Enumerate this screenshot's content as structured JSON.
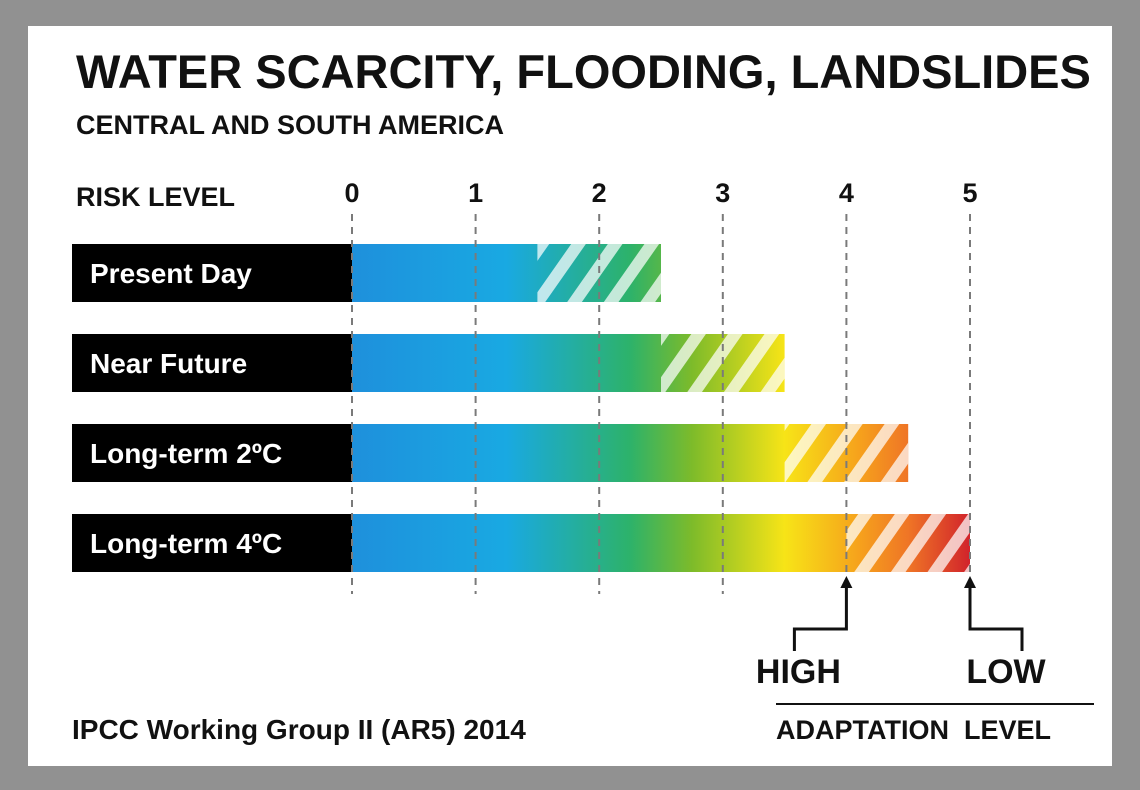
{
  "chart_data": {
    "type": "bar",
    "title": "WATER SCARCITY, FLOODING, LANDSLIDES",
    "subtitle": "CENTRAL AND SOUTH AMERICA",
    "xlabel": "RISK LEVEL",
    "xlim": [
      0,
      5
    ],
    "ticks": [
      "0",
      "1",
      "2",
      "3",
      "4",
      "5"
    ],
    "grid": true,
    "series": [
      {
        "category": "Present Day",
        "high_adaptation": 1.5,
        "low_adaptation": 2.5
      },
      {
        "category": "Near Future",
        "high_adaptation": 2.5,
        "low_adaptation": 3.5
      },
      {
        "category": "Long-term 2ºC",
        "high_adaptation": 3.5,
        "low_adaptation": 4.5
      },
      {
        "category": "Long-term 4ºC",
        "high_adaptation": 4.0,
        "low_adaptation": 5.0
      }
    ],
    "colors": [
      "#1e90dc",
      "#19a9e2",
      "#2db26a",
      "#7dbb2a",
      "#f7e417",
      "#f6a21c",
      "#ef7526",
      "#d1232b"
    ],
    "annotations": {
      "high": "HIGH",
      "low": "LOW",
      "adaptation_level": "ADAPTATION  LEVEL",
      "high_value": 4,
      "low_value": 5
    },
    "source": "IPCC Working Group II (AR5) 2014"
  }
}
